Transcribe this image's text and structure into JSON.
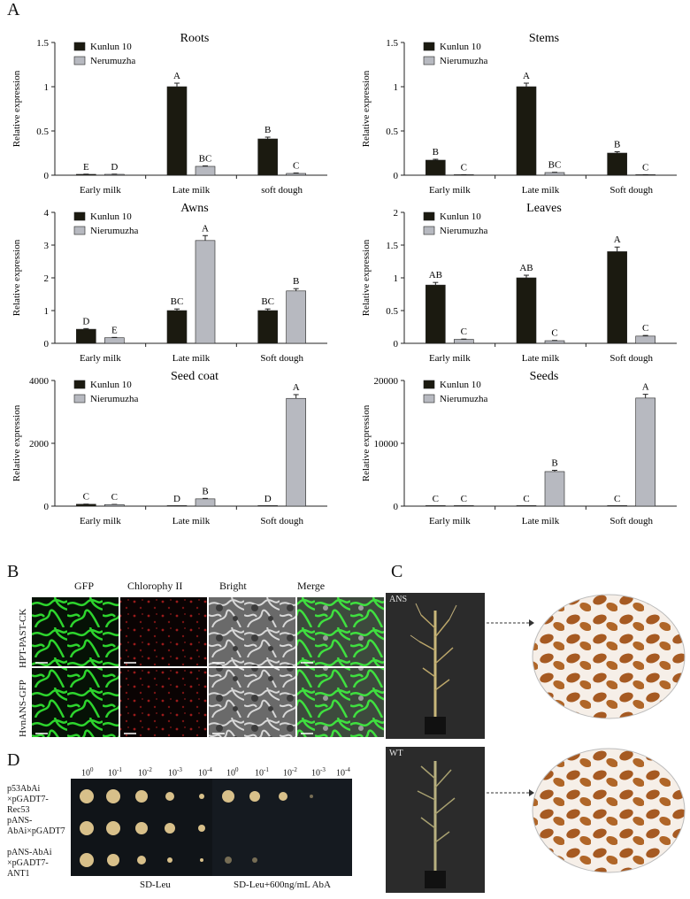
{
  "panel_labels": {
    "a": "A",
    "b": "B",
    "c": "C",
    "d": "D"
  },
  "chart_data": [
    {
      "type": "bar",
      "title": "Roots",
      "ylabel": "Relative expression",
      "ylim": [
        0,
        1.5
      ],
      "yticks": [
        "0",
        "0.5",
        "1",
        "1.5"
      ],
      "categories": [
        "Early milk",
        "Late milk",
        "soft dough"
      ],
      "series": [
        {
          "name": "Kunlun 10",
          "values": [
            0.01,
            1.0,
            0.41
          ],
          "errors": [
            0.002,
            0.04,
            0.02
          ],
          "letters": [
            "E",
            "A",
            "B"
          ]
        },
        {
          "name": "Nerumuzha",
          "values": [
            0.01,
            0.1,
            0.02
          ],
          "errors": [
            0.002,
            0.005,
            0.005
          ],
          "letters": [
            "D",
            "BC",
            "C"
          ]
        }
      ]
    },
    {
      "type": "bar",
      "title": "Stems",
      "ylabel": "Relative expression",
      "ylim": [
        0,
        1.5
      ],
      "yticks": [
        "0",
        "0.5",
        "1",
        "1.5"
      ],
      "categories": [
        "Early milk",
        "Late milk",
        "Soft dough"
      ],
      "series": [
        {
          "name": "Kunlun 10",
          "values": [
            0.17,
            1.0,
            0.25
          ],
          "errors": [
            0.01,
            0.04,
            0.015
          ],
          "letters": [
            "B",
            "A",
            "B"
          ]
        },
        {
          "name": "Nierumuzha",
          "values": [
            0.005,
            0.03,
            0.005
          ],
          "errors": [
            0.001,
            0.003,
            0.001
          ],
          "letters": [
            "C",
            "BC",
            "C"
          ]
        }
      ]
    },
    {
      "type": "bar",
      "title": "Awns",
      "ylabel": "Relative expression",
      "ylim": [
        0,
        4
      ],
      "yticks": [
        "0",
        "1",
        "2",
        "3",
        "4"
      ],
      "categories": [
        "Early milk",
        "Late milk",
        "Soft dough"
      ],
      "series": [
        {
          "name": "Kunlun 10",
          "values": [
            0.43,
            1.0,
            1.0
          ],
          "errors": [
            0.02,
            0.05,
            0.05
          ],
          "letters": [
            "D",
            "BC",
            "BC"
          ]
        },
        {
          "name": "Nierumuzha",
          "values": [
            0.17,
            3.14,
            1.6
          ],
          "errors": [
            0.01,
            0.15,
            0.07
          ],
          "letters": [
            "E",
            "A",
            "B"
          ]
        }
      ]
    },
    {
      "type": "bar",
      "title": "Leaves",
      "ylabel": "Relative expression",
      "ylim": [
        0,
        2
      ],
      "yticks": [
        "0",
        "0.5",
        "1",
        "1.5",
        "2"
      ],
      "categories": [
        "Early milk",
        "Late milk",
        "Soft dough"
      ],
      "series": [
        {
          "name": "Kunlun 10",
          "values": [
            0.89,
            1.0,
            1.4
          ],
          "errors": [
            0.04,
            0.04,
            0.07
          ],
          "letters": [
            "AB",
            "AB",
            "A"
          ]
        },
        {
          "name": "Nierumuzha",
          "values": [
            0.06,
            0.04,
            0.11
          ],
          "errors": [
            0.005,
            0.004,
            0.01
          ],
          "letters": [
            "C",
            "C",
            "C"
          ]
        }
      ]
    },
    {
      "type": "bar",
      "title": "Seed coat",
      "ylabel": "Relative expression",
      "ylim": [
        0,
        4000
      ],
      "yticks": [
        "0",
        "2000",
        "4000"
      ],
      "categories": [
        "Early milk",
        "Late milk",
        "Soft dough"
      ],
      "series": [
        {
          "name": "Kunlun 10",
          "values": [
            60,
            3,
            3
          ],
          "errors": [
            5,
            1,
            1
          ],
          "letters": [
            "C",
            "D",
            "D"
          ]
        },
        {
          "name": "Nierumuzha",
          "values": [
            50,
            230,
            3430
          ],
          "errors": [
            5,
            15,
            120
          ],
          "letters": [
            "C",
            "B",
            "A"
          ]
        }
      ]
    },
    {
      "type": "bar",
      "title": "Seeds",
      "ylabel": "Relative expression",
      "ylim": [
        0,
        20000
      ],
      "yticks": [
        "0",
        "10000",
        "20000"
      ],
      "categories": [
        "Early milk",
        "Late milk",
        "Soft dough"
      ],
      "series": [
        {
          "name": "Kunlun 10",
          "values": [
            10,
            10,
            10
          ],
          "errors": [
            0,
            0,
            0
          ],
          "letters": [
            "C",
            "C",
            "C"
          ]
        },
        {
          "name": "Nierumuzha",
          "values": [
            20,
            5500,
            17200
          ],
          "errors": [
            2,
            200,
            600
          ],
          "letters": [
            "C",
            "B",
            "A"
          ]
        }
      ]
    }
  ],
  "colors": {
    "kunlun": "#1b1a10",
    "nieru": "#b7b9c0",
    "axis": "#222222"
  },
  "panelB": {
    "cols": [
      "GFP",
      "Chlorophy II",
      "Bright",
      "Merge"
    ],
    "rows": [
      "HPT-PAST-CK",
      "HvnANS-GFP"
    ]
  },
  "panelC": {
    "top_label": "ANS",
    "bottom_label": "WT"
  },
  "panelD": {
    "dilutions": [
      "10",
      "10",
      "10",
      "10",
      "10",
      "10",
      "10",
      "10",
      "10",
      "10"
    ],
    "exponents": [
      "0",
      "-1",
      "-2",
      "-3",
      "-4",
      "0",
      "-1",
      "-2",
      "-3",
      "-4"
    ],
    "rows": [
      [
        "p53AbAi",
        "×pGADT7-Rec53"
      ],
      [
        "pANS-",
        "AbAi×pGADT7"
      ],
      [
        "pANS-AbAi",
        "×pGADT7-ANT1"
      ]
    ],
    "media": [
      "SD-Leu",
      "SD-Leu+600ng/mL AbA"
    ]
  }
}
